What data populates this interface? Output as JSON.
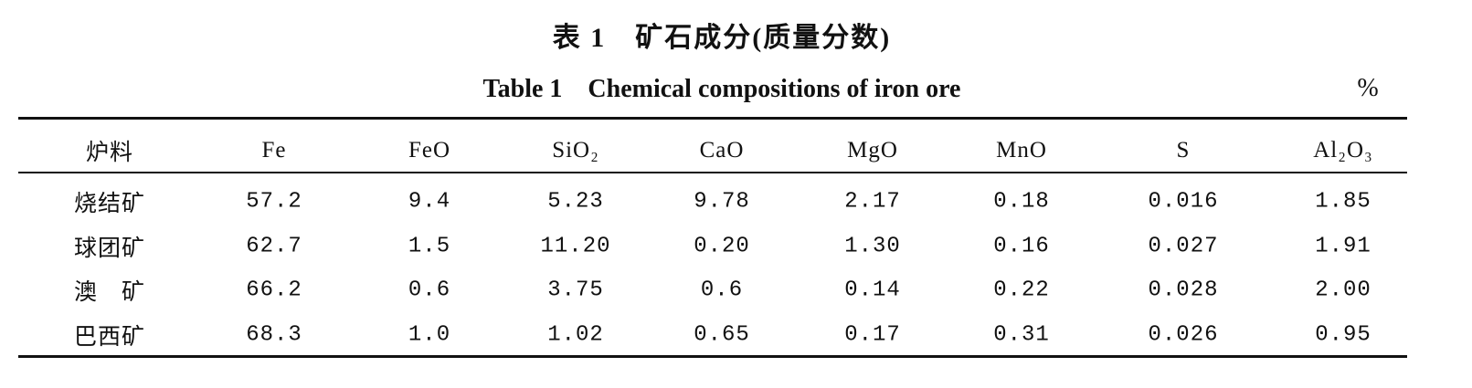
{
  "header": {
    "title": "表 1　矿石成分(质量分数)",
    "subtitle": "Table 1　Chemical compositions of iron ore",
    "unit": "%"
  },
  "table": {
    "columns": [
      "炉料",
      "Fe",
      "FeO",
      "SiO₂",
      "CaO",
      "MgO",
      "MnO",
      "S",
      "Al₂O₃"
    ],
    "rows": [
      [
        "烧结矿",
        "57.2",
        "9.4",
        "5.23",
        "9.78",
        "2.17",
        "0.18",
        "0.016",
        "1.85"
      ],
      [
        "球团矿",
        "62.7",
        "1.5",
        "11.20",
        "0.20",
        "1.30",
        "0.16",
        "0.027",
        "1.91"
      ],
      [
        "澳　矿",
        "66.2",
        "0.6",
        "3.75",
        "0.6",
        "0.14",
        "0.22",
        "0.028",
        "2.00"
      ],
      [
        "巴西矿",
        "68.3",
        "1.0",
        "1.02",
        "0.65",
        "0.17",
        "0.31",
        "0.026",
        "0.95"
      ]
    ]
  }
}
